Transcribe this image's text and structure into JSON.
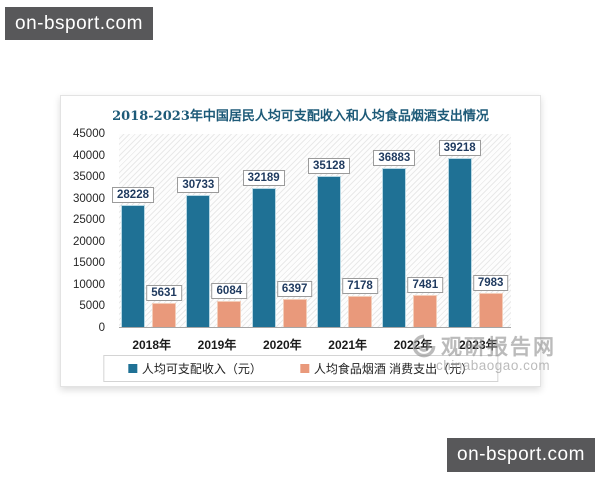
{
  "watermarks": {
    "top_left_label": "on-bsport.com",
    "bottom_right_label": "on-bsport.com",
    "site_name": "观研报告网",
    "site_url": "chinabaogao.com"
  },
  "chart_data": {
    "type": "bar",
    "title": "2018-2023年中国居民人均可支配收入和人均食品烟酒支出情况",
    "categories": [
      "2018年",
      "2019年",
      "2020年",
      "2021年",
      "2022年",
      "2023年"
    ],
    "series": [
      {
        "name": "人均可支配收入（元）",
        "color": "#1f7195",
        "values": [
          28228,
          30733,
          32189,
          35128,
          36883,
          39218
        ]
      },
      {
        "name": "人均食品烟酒消费支出（元）",
        "color": "#e9997b",
        "values": [
          5631,
          6084,
          6397,
          7178,
          7481,
          7983
        ]
      }
    ],
    "legend": [
      "人均可支配收入（元）",
      "人均食品烟酒 消费支出（元）"
    ],
    "ylim": [
      0,
      45000
    ],
    "yticks": [
      45000,
      40000,
      35000,
      30000,
      25000,
      20000,
      15000,
      10000,
      5000,
      0
    ],
    "grid": false,
    "legend_position": "bottom",
    "data_labels": true,
    "xlabel": "",
    "ylabel": "",
    "title_color": "#1d5a78",
    "bar_border_colors": [
      "#b9d9e5",
      "#f3cdb9"
    ]
  }
}
